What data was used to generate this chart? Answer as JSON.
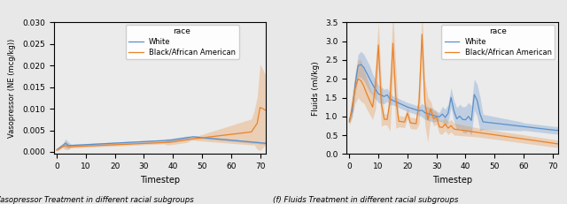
{
  "fig_width": 6.4,
  "fig_height": 2.31,
  "dpi": 100,
  "left_title": "(e) Vasopressor Treatment in different racial subgroups",
  "right_title": "(f) Fluids Treatment in different racial subgroups",
  "legend_title": "race",
  "legend_labels": [
    "White",
    "Black/African American"
  ],
  "blue_color": "#5b8fcc",
  "orange_color": "#e8832a",
  "blue_alpha": 0.3,
  "orange_alpha": 0.28,
  "xlabel": "Timestep",
  "left_ylabel": "Vasopressor (NE (mcg/kg))",
  "right_ylabel": "Fluids (ml/kg)",
  "left_ylim": [
    -0.0005,
    0.03
  ],
  "right_ylim": [
    0.0,
    3.5
  ],
  "left_yticks": [
    0.0,
    0.005,
    0.01,
    0.015,
    0.02,
    0.025,
    0.03
  ],
  "right_yticks": [
    0.0,
    0.5,
    1.0,
    1.5,
    2.0,
    2.5,
    3.0,
    3.5
  ],
  "xlim": [
    -1,
    72
  ],
  "xticks": [
    0,
    10,
    20,
    30,
    40,
    50,
    60,
    70
  ],
  "bg_color": "#e8e8e8",
  "plot_bg": "#f0f0f0"
}
